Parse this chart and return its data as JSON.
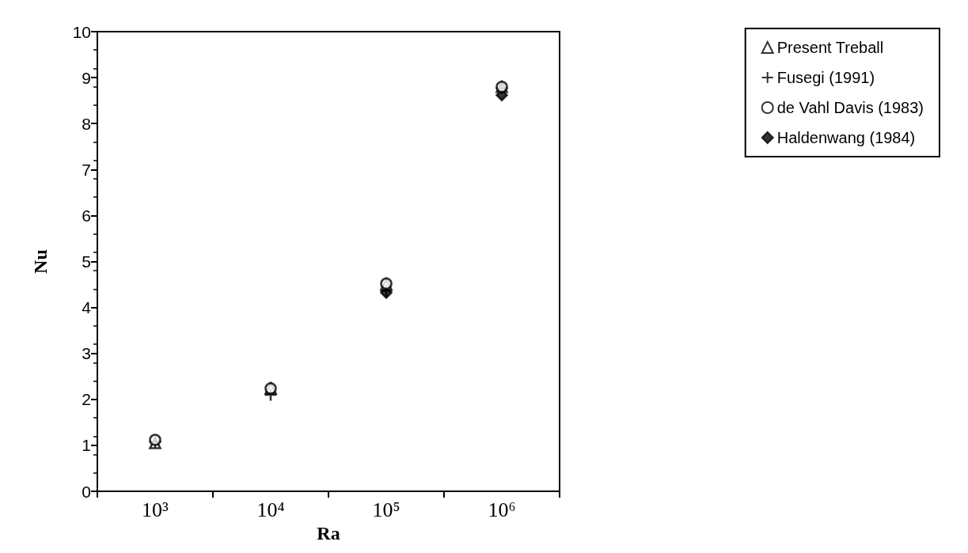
{
  "chart_data": {
    "type": "scatter",
    "xlabel": "Ra",
    "ylabel": "Nu",
    "categories": [
      "10³",
      "10⁴",
      "10⁵",
      "10⁶"
    ],
    "ylim": [
      0,
      10
    ],
    "yticks": [
      0,
      1,
      2,
      3,
      4,
      5,
      6,
      7,
      8,
      9,
      10
    ],
    "grid": false,
    "legend": "top right",
    "series": [
      {
        "name": "Present Treball",
        "color": "#000000",
        "marker": "triangle",
        "values": [
          1.05,
          2.24,
          4.5,
          8.8
        ]
      },
      {
        "name": "Fusegi (1991)",
        "color": "#000000",
        "marker": "cross",
        "values": [
          1.08,
          2.1,
          4.36,
          8.77
        ]
      },
      {
        "name": "de Vahl Davis (1983)",
        "color": "#000000",
        "marker": "circle",
        "values": [
          1.12,
          2.24,
          4.52,
          8.8
        ]
      },
      {
        "name": "Haldenwang (1984)",
        "color": "#000000",
        "marker": "diamond",
        "values": [
          null,
          null,
          4.32,
          8.62
        ]
      }
    ]
  }
}
